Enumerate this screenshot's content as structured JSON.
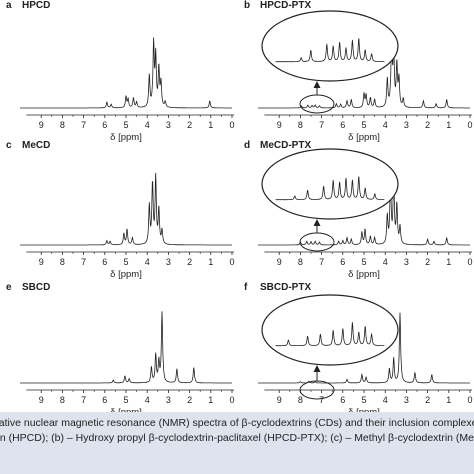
{
  "chart_data": [
    {
      "id": "a",
      "type": "line",
      "panel_letter": "a",
      "title": "HPCD",
      "xlabel": "δ [ppm]",
      "xlim": [
        10,
        0
      ],
      "x_ticks": [
        "9",
        "8",
        "7",
        "6",
        "5",
        "4",
        "3",
        "2",
        "1",
        "0"
      ],
      "inset": false,
      "peaks": [
        {
          "x": 5.9,
          "y": 0.08
        },
        {
          "x": 5.7,
          "y": 0.05
        },
        {
          "x": 5.0,
          "y": 0.16
        },
        {
          "x": 4.9,
          "y": 0.12
        },
        {
          "x": 4.65,
          "y": 0.14
        },
        {
          "x": 4.5,
          "y": 0.08
        },
        {
          "x": 3.9,
          "y": 0.45
        },
        {
          "x": 3.7,
          "y": 0.9
        },
        {
          "x": 3.6,
          "y": 0.72
        },
        {
          "x": 3.45,
          "y": 0.55
        },
        {
          "x": 3.35,
          "y": 0.35
        },
        {
          "x": 3.15,
          "y": 0.08
        },
        {
          "x": 1.05,
          "y": 0.1
        }
      ]
    },
    {
      "id": "b",
      "type": "line",
      "panel_letter": "b",
      "title": "HPCD-PTX",
      "xlabel": "δ [ppm]",
      "xlim": [
        10,
        0
      ],
      "x_ticks": [
        "9",
        "8",
        "7",
        "6",
        "5",
        "4",
        "3",
        "2",
        "1",
        "0"
      ],
      "inset": true,
      "peaks": [
        {
          "x": 7.95,
          "y": 0.03
        },
        {
          "x": 7.65,
          "y": 0.04
        },
        {
          "x": 7.45,
          "y": 0.035
        },
        {
          "x": 7.3,
          "y": 0.04
        },
        {
          "x": 7.1,
          "y": 0.03
        },
        {
          "x": 6.3,
          "y": 0.06
        },
        {
          "x": 6.1,
          "y": 0.05
        },
        {
          "x": 5.8,
          "y": 0.1
        },
        {
          "x": 5.6,
          "y": 0.12
        },
        {
          "x": 5.0,
          "y": 0.2
        },
        {
          "x": 4.9,
          "y": 0.18
        },
        {
          "x": 4.7,
          "y": 0.14
        },
        {
          "x": 4.5,
          "y": 0.12
        },
        {
          "x": 3.9,
          "y": 0.4
        },
        {
          "x": 3.7,
          "y": 0.95
        },
        {
          "x": 3.6,
          "y": 0.8
        },
        {
          "x": 3.45,
          "y": 0.6
        },
        {
          "x": 3.35,
          "y": 0.4
        },
        {
          "x": 3.15,
          "y": 0.12
        },
        {
          "x": 2.2,
          "y": 0.1
        },
        {
          "x": 1.6,
          "y": 0.06
        },
        {
          "x": 1.1,
          "y": 0.12
        }
      ],
      "inset_peaks": [
        {
          "x": 8.1,
          "y": 0.1
        },
        {
          "x": 7.95,
          "y": 0.3
        },
        {
          "x": 7.7,
          "y": 0.45
        },
        {
          "x": 7.6,
          "y": 0.4
        },
        {
          "x": 7.5,
          "y": 0.5
        },
        {
          "x": 7.4,
          "y": 0.35
        },
        {
          "x": 7.3,
          "y": 0.55
        },
        {
          "x": 7.2,
          "y": 0.6
        },
        {
          "x": 7.1,
          "y": 0.3
        },
        {
          "x": 7.0,
          "y": 0.2
        }
      ]
    },
    {
      "id": "c",
      "type": "line",
      "panel_letter": "c",
      "title": "MeCD",
      "xlabel": "δ [ppm]",
      "xlim": [
        10,
        0
      ],
      "x_ticks": [
        "9",
        "8",
        "7",
        "6",
        "5",
        "4",
        "3",
        "2",
        "1",
        "0"
      ],
      "inset": false,
      "peaks": [
        {
          "x": 5.9,
          "y": 0.06
        },
        {
          "x": 5.75,
          "y": 0.05
        },
        {
          "x": 5.1,
          "y": 0.16
        },
        {
          "x": 4.95,
          "y": 0.22
        },
        {
          "x": 4.7,
          "y": 0.1
        },
        {
          "x": 3.9,
          "y": 0.55
        },
        {
          "x": 3.75,
          "y": 0.85
        },
        {
          "x": 3.6,
          "y": 0.95
        },
        {
          "x": 3.45,
          "y": 0.5
        },
        {
          "x": 3.3,
          "y": 0.2
        }
      ]
    },
    {
      "id": "d",
      "type": "line",
      "panel_letter": "d",
      "title": "MeCD-PTX",
      "xlabel": "δ [ppm]",
      "xlim": [
        10,
        0
      ],
      "x_ticks": [
        "9",
        "8",
        "7",
        "6",
        "5",
        "4",
        "3",
        "2",
        "1",
        "0"
      ],
      "inset": true,
      "peaks": [
        {
          "x": 8.0,
          "y": 0.04
        },
        {
          "x": 7.7,
          "y": 0.05
        },
        {
          "x": 7.5,
          "y": 0.045
        },
        {
          "x": 7.3,
          "y": 0.05
        },
        {
          "x": 7.1,
          "y": 0.04
        },
        {
          "x": 6.2,
          "y": 0.05
        },
        {
          "x": 6.0,
          "y": 0.06
        },
        {
          "x": 5.8,
          "y": 0.1
        },
        {
          "x": 5.6,
          "y": 0.08
        },
        {
          "x": 5.1,
          "y": 0.18
        },
        {
          "x": 4.95,
          "y": 0.22
        },
        {
          "x": 4.7,
          "y": 0.12
        },
        {
          "x": 4.5,
          "y": 0.1
        },
        {
          "x": 3.9,
          "y": 0.4
        },
        {
          "x": 3.75,
          "y": 0.85
        },
        {
          "x": 3.6,
          "y": 0.95
        },
        {
          "x": 3.45,
          "y": 0.55
        },
        {
          "x": 3.3,
          "y": 0.25
        },
        {
          "x": 2.0,
          "y": 0.08
        },
        {
          "x": 1.7,
          "y": 0.05
        },
        {
          "x": 1.1,
          "y": 0.1
        }
      ],
      "inset_peaks": [
        {
          "x": 8.2,
          "y": 0.1
        },
        {
          "x": 8.0,
          "y": 0.25
        },
        {
          "x": 7.75,
          "y": 0.35
        },
        {
          "x": 7.6,
          "y": 0.5
        },
        {
          "x": 7.5,
          "y": 0.45
        },
        {
          "x": 7.4,
          "y": 0.55
        },
        {
          "x": 7.3,
          "y": 0.5
        },
        {
          "x": 7.2,
          "y": 0.6
        },
        {
          "x": 7.1,
          "y": 0.3
        },
        {
          "x": 6.95,
          "y": 0.15
        }
      ]
    },
    {
      "id": "e",
      "type": "line",
      "panel_letter": "e",
      "title": "SBCD",
      "xlabel": "δ [ppm]",
      "xlim": [
        10,
        0
      ],
      "x_ticks": [
        "9",
        "8",
        "7",
        "6",
        "5",
        "4",
        "3",
        "2",
        "1",
        "0"
      ],
      "inset": false,
      "peaks": [
        {
          "x": 5.6,
          "y": 0.04
        },
        {
          "x": 5.05,
          "y": 0.1
        },
        {
          "x": 4.85,
          "y": 0.06
        },
        {
          "x": 3.8,
          "y": 0.22
        },
        {
          "x": 3.6,
          "y": 0.4
        },
        {
          "x": 3.45,
          "y": 0.3
        },
        {
          "x": 3.3,
          "y": 1.0
        },
        {
          "x": 2.6,
          "y": 0.2
        },
        {
          "x": 1.8,
          "y": 0.22
        }
      ]
    },
    {
      "id": "f",
      "type": "line",
      "panel_letter": "f",
      "title": "SBCD-PTX",
      "xlabel": "δ [ppm]",
      "xlim": [
        10,
        0
      ],
      "x_ticks": [
        "9",
        "8",
        "7",
        "6",
        "5",
        "4",
        "3",
        "2",
        "1",
        "0"
      ],
      "inset": true,
      "peaks": [
        {
          "x": 8.0,
          "y": 0.02
        },
        {
          "x": 7.6,
          "y": 0.025
        },
        {
          "x": 7.3,
          "y": 0.02
        },
        {
          "x": 5.8,
          "y": 0.05
        },
        {
          "x": 5.1,
          "y": 0.12
        },
        {
          "x": 4.9,
          "y": 0.08
        },
        {
          "x": 3.8,
          "y": 0.2
        },
        {
          "x": 3.6,
          "y": 0.35
        },
        {
          "x": 3.3,
          "y": 1.0
        },
        {
          "x": 2.6,
          "y": 0.15
        },
        {
          "x": 1.8,
          "y": 0.12
        }
      ],
      "inset_peaks": [
        {
          "x": 8.3,
          "y": 0.15
        },
        {
          "x": 8.0,
          "y": 0.25
        },
        {
          "x": 7.8,
          "y": 0.3
        },
        {
          "x": 7.6,
          "y": 0.4
        },
        {
          "x": 7.45,
          "y": 0.45
        },
        {
          "x": 7.3,
          "y": 0.6
        },
        {
          "x": 7.2,
          "y": 0.35
        },
        {
          "x": 7.1,
          "y": 0.5
        },
        {
          "x": 7.0,
          "y": 0.3
        }
      ]
    }
  ],
  "caption": {
    "line1": "ntative nuclear magnetic resonance (NMR) spectra of β-cyclodextrins (CDs) and their inclusion complexes with",
    "line2": "rin (HPCD); (b) – Hydroxy propyl β-cyclodextrin-paclitaxel (HPCD-PTX); (c) – Methyl β-cyclodextrin (MeCD"
  },
  "colors": {
    "line": "#222222",
    "caption_bg": "#dde4ee",
    "text": "#222222"
  }
}
